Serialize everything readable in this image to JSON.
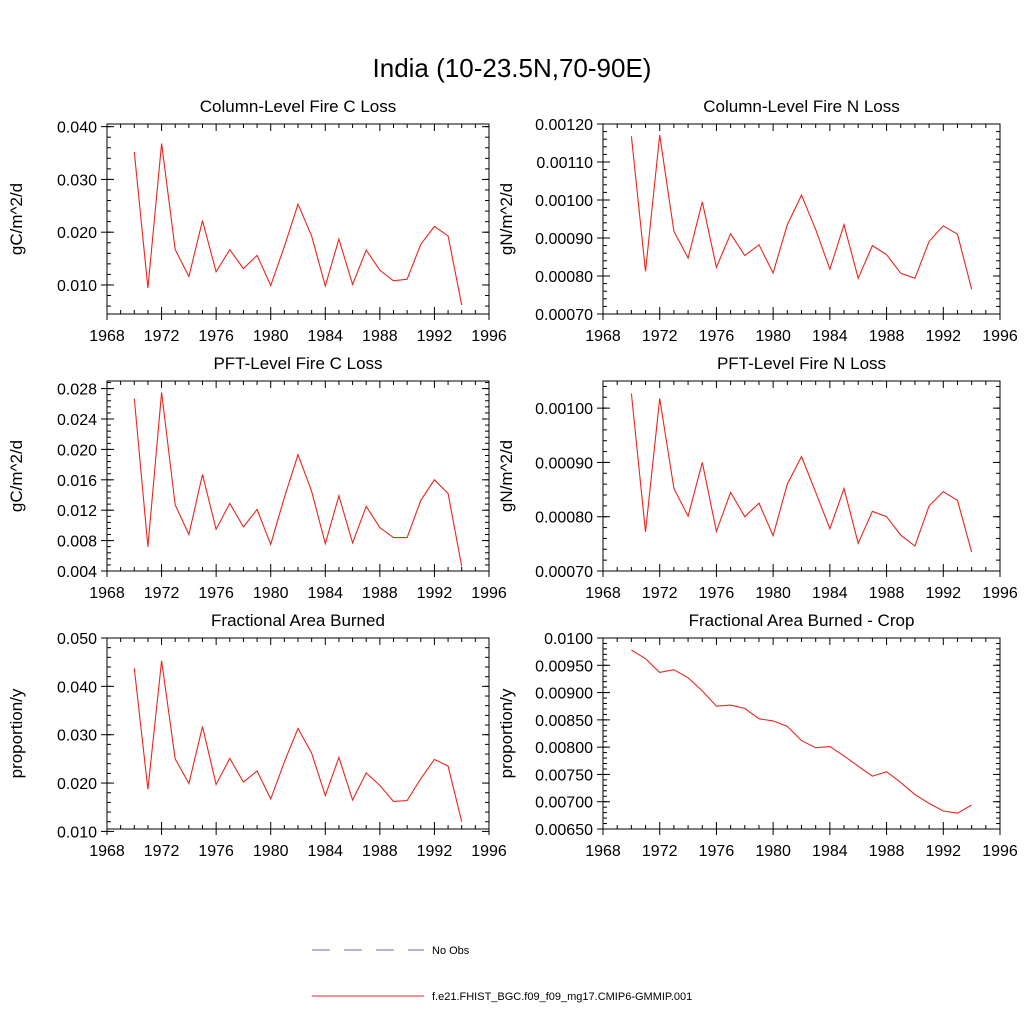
{
  "main_title": "India (10-23.5N,70-90E)",
  "legend": {
    "entries": [
      {
        "label": "No Obs",
        "color": "#6a6ab8",
        "style": "dashed"
      },
      {
        "label": "f.e21.FHIST_BGC.f09_f09_mg17.CMIP6-GMMIP.001",
        "color": "#e8261e",
        "style": "solid"
      }
    ]
  },
  "chart_data": [
    {
      "type": "line",
      "title": "Column-Level Fire C Loss",
      "ylabel": "gC/m^2/d",
      "xlim": [
        1968,
        1996
      ],
      "ylim": [
        0.0045,
        0.0405
      ],
      "xticks": [
        "1968",
        "1972",
        "1976",
        "1980",
        "1984",
        "1988",
        "1992",
        "1996"
      ],
      "yticks": [
        "0.010",
        "0.020",
        "0.030",
        "0.040"
      ],
      "series": [
        {
          "color": "#e8261e",
          "x": [
            1970,
            1971,
            1972,
            1973,
            1974,
            1975,
            1976,
            1977,
            1978,
            1979,
            1980,
            1981,
            1982,
            1983,
            1984,
            1985,
            1986,
            1987,
            1988,
            1989,
            1990,
            1991,
            1992,
            1993,
            1994
          ],
          "values": [
            0.0352,
            0.0094,
            0.0368,
            0.0167,
            0.0116,
            0.0222,
            0.0125,
            0.0167,
            0.0131,
            0.0156,
            0.0099,
            0.0173,
            0.0253,
            0.0193,
            0.0098,
            0.0187,
            0.0101,
            0.0166,
            0.0128,
            0.0108,
            0.0111,
            0.0177,
            0.0211,
            0.0193,
            0.0062
          ]
        }
      ]
    },
    {
      "type": "line",
      "title": "Column-Level Fire N Loss",
      "ylabel": "gN/m^2/d",
      "xlim": [
        1968,
        1996
      ],
      "ylim": [
        0.0007,
        0.0012
      ],
      "xticks": [
        "1968",
        "1972",
        "1976",
        "1980",
        "1984",
        "1988",
        "1992",
        "1996"
      ],
      "yticks": [
        "0.00070",
        "0.00080",
        "0.00090",
        "0.00100",
        "0.00110",
        "0.00120"
      ],
      "series": [
        {
          "color": "#e8261e",
          "x": [
            1970,
            1971,
            1972,
            1973,
            1974,
            1975,
            1976,
            1977,
            1978,
            1979,
            1980,
            1981,
            1982,
            1983,
            1984,
            1985,
            1986,
            1987,
            1988,
            1989,
            1990,
            1991,
            1992,
            1993,
            1994
          ],
          "values": [
            0.001168,
            0.000812,
            0.001171,
            0.000918,
            0.000847,
            0.000995,
            0.000823,
            0.000911,
            0.000854,
            0.000882,
            0.000808,
            0.000935,
            0.001013,
            0.000922,
            0.000818,
            0.000935,
            0.000794,
            0.00088,
            0.000856,
            0.000807,
            0.000794,
            0.000891,
            0.000932,
            0.00091,
            0.000765
          ]
        }
      ]
    },
    {
      "type": "line",
      "title": "PFT-Level Fire C Loss",
      "ylabel": "gC/m^2/d",
      "xlim": [
        1968,
        1996
      ],
      "ylim": [
        0.004,
        0.029
      ],
      "xticks": [
        "1968",
        "1972",
        "1976",
        "1980",
        "1984",
        "1988",
        "1992",
        "1996"
      ],
      "yticks": [
        "0.004",
        "0.008",
        "0.012",
        "0.016",
        "0.020",
        "0.024",
        "0.028"
      ],
      "series": [
        {
          "color": "#e8261e",
          "x": [
            1970,
            1971,
            1972,
            1973,
            1974,
            1975,
            1976,
            1977,
            1978,
            1979,
            1980,
            1981,
            1982,
            1983,
            1984,
            1985,
            1986,
            1987,
            1988,
            1989,
            1990,
            1991,
            1992,
            1993,
            1994
          ],
          "values": [
            0.0267,
            0.0072,
            0.0275,
            0.0127,
            0.0088,
            0.0167,
            0.0095,
            0.0129,
            0.0098,
            0.0121,
            0.0075,
            0.0137,
            0.0193,
            0.0145,
            0.0076,
            0.0139,
            0.0077,
            0.0125,
            0.0097,
            0.0084,
            0.0084,
            0.0133,
            0.016,
            0.0142,
            0.0046
          ]
        }
      ]
    },
    {
      "type": "line",
      "title": "PFT-Level Fire N Loss",
      "ylabel": "gN/m^2/d",
      "xlim": [
        1968,
        1996
      ],
      "ylim": [
        0.0007,
        0.00105
      ],
      "xticks": [
        "1968",
        "1972",
        "1976",
        "1980",
        "1984",
        "1988",
        "1992",
        "1996"
      ],
      "yticks": [
        "0.00070",
        "0.00080",
        "0.00090",
        "0.00100"
      ],
      "series": [
        {
          "color": "#e8261e",
          "x": [
            1970,
            1971,
            1972,
            1973,
            1974,
            1975,
            1976,
            1977,
            1978,
            1979,
            1980,
            1981,
            1982,
            1983,
            1984,
            1985,
            1986,
            1987,
            1988,
            1989,
            1990,
            1991,
            1992,
            1993,
            1994
          ],
          "values": [
            0.001027,
            0.000772,
            0.001018,
            0.000852,
            0.000801,
            0.0009,
            0.000773,
            0.000845,
            0.0008,
            0.000825,
            0.000765,
            0.00086,
            0.000911,
            0.000845,
            0.000778,
            0.000852,
            0.000751,
            0.00081,
            0.0008,
            0.000766,
            0.000746,
            0.00082,
            0.000846,
            0.00083,
            0.000735
          ]
        }
      ]
    },
    {
      "type": "line",
      "title": "Fractional Area Burned",
      "ylabel": "proportion/y",
      "xlim": [
        1968,
        1996
      ],
      "ylim": [
        0.0105,
        0.05
      ],
      "xticks": [
        "1968",
        "1972",
        "1976",
        "1980",
        "1984",
        "1988",
        "1992",
        "1996"
      ],
      "yticks": [
        "0.010",
        "0.020",
        "0.030",
        "0.040",
        "0.050"
      ],
      "series": [
        {
          "color": "#e8261e",
          "x": [
            1970,
            1971,
            1972,
            1973,
            1974,
            1975,
            1976,
            1977,
            1978,
            1979,
            1980,
            1981,
            1982,
            1983,
            1984,
            1985,
            1986,
            1987,
            1988,
            1989,
            1990,
            1991,
            1992,
            1993,
            1994
          ],
          "values": [
            0.0437,
            0.0187,
            0.0453,
            0.025,
            0.0199,
            0.0317,
            0.0197,
            0.0251,
            0.0202,
            0.0225,
            0.0167,
            0.0244,
            0.0313,
            0.0262,
            0.0174,
            0.0253,
            0.0165,
            0.0221,
            0.0195,
            0.0162,
            0.0164,
            0.0209,
            0.0249,
            0.0235,
            0.012
          ]
        }
      ]
    },
    {
      "type": "line",
      "title": "Fractional Area Burned - Crop",
      "ylabel": "proportion/y",
      "xlim": [
        1968,
        1996
      ],
      "ylim": [
        0.0065,
        0.01
      ],
      "xticks": [
        "1968",
        "1972",
        "1976",
        "1980",
        "1984",
        "1988",
        "1992",
        "1996"
      ],
      "yticks": [
        "0.00650",
        "0.00700",
        "0.00750",
        "0.00800",
        "0.00850",
        "0.00900",
        "0.00950",
        "0.0100"
      ],
      "series": [
        {
          "color": "#e8261e",
          "x": [
            1970,
            1971,
            1972,
            1973,
            1974,
            1975,
            1976,
            1977,
            1978,
            1979,
            1980,
            1981,
            1982,
            1983,
            1984,
            1985,
            1986,
            1987,
            1988,
            1989,
            1990,
            1991,
            1992,
            1993,
            1994
          ],
          "values": [
            0.00978,
            0.00962,
            0.00937,
            0.00942,
            0.00927,
            0.00903,
            0.00875,
            0.00877,
            0.00871,
            0.00852,
            0.00848,
            0.00838,
            0.00812,
            0.00799,
            0.00801,
            0.00784,
            0.00765,
            0.00747,
            0.00755,
            0.00735,
            0.00713,
            0.00697,
            0.00683,
            0.00679,
            0.00694
          ]
        }
      ]
    }
  ]
}
